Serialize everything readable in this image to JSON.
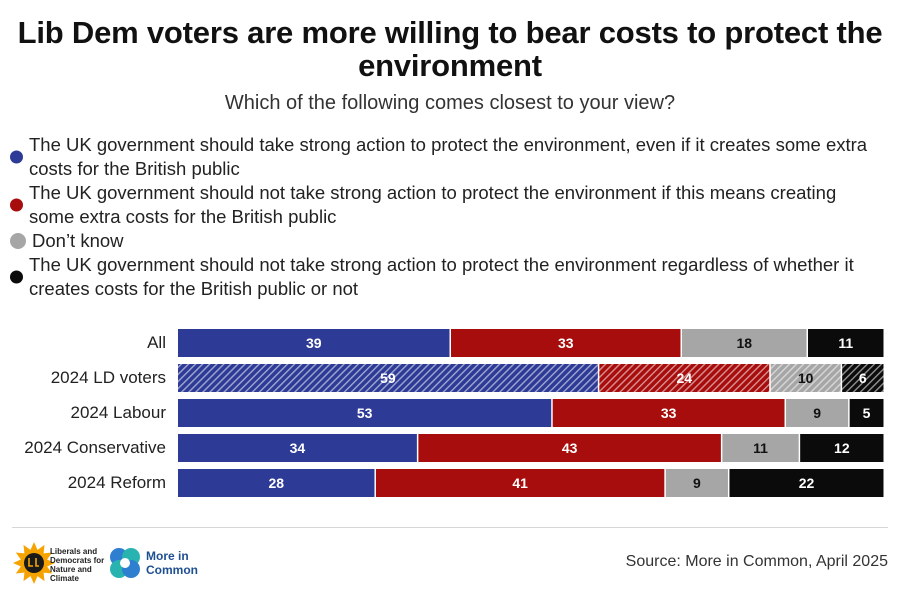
{
  "title": "Lib Dem voters are more willing to bear costs to protect the environment",
  "subtitle": "Which of the following comes closest to your view?",
  "legend": [
    {
      "label": "The UK government should take strong action to protect the environment, even if it creates some extra costs for the British public",
      "color": "#2e3b96"
    },
    {
      "label": "The UK government should not take strong action to protect the environment if this means creating some extra costs for the British public",
      "color": "#a80d0d"
    },
    {
      "label": "Don’t know",
      "color": "#a6a6a6"
    },
    {
      "label": "The UK government should not take strong action to protect the environment regardless of whether it creates costs for the British public or not",
      "color": "#0b0b0b"
    }
  ],
  "chart_data": {
    "type": "bar",
    "orientation": "horizontal",
    "stacked": true,
    "categories": [
      "All",
      "2024 LD voters",
      "2024 Labour",
      "2024 Conservative",
      "2024 Reform"
    ],
    "highlighted_category": "2024 LD voters",
    "series": [
      {
        "name": "The UK government should take strong action to protect the environment, even if it creates some extra costs for the British public",
        "color": "#2e3b96",
        "values": [
          39,
          59,
          53,
          34,
          28
        ]
      },
      {
        "name": "The UK government should not take strong action to protect the environment if this means creating some extra costs for the British public",
        "color": "#a80d0d",
        "values": [
          33,
          24,
          33,
          43,
          41
        ]
      },
      {
        "name": "Don’t know",
        "color": "#a6a6a6",
        "values": [
          18,
          10,
          9,
          11,
          9
        ]
      },
      {
        "name": "The UK government should not take strong action to protect the environment regardless of whether it creates costs for the British public or not",
        "color": "#0b0b0b",
        "values": [
          11,
          6,
          5,
          12,
          22
        ]
      }
    ],
    "xlabel": "",
    "ylabel": "",
    "grid": false
  },
  "footer": {
    "logo1_text": "Liberals and Democrats for Nature and Climate",
    "logo2_text": "More in Common",
    "source": "Source: More in Common, April 2025"
  }
}
